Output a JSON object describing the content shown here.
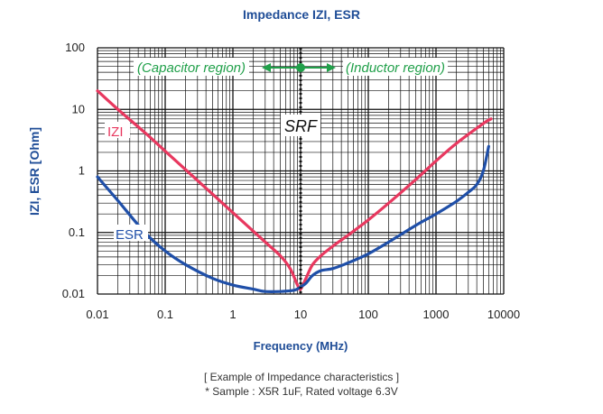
{
  "chart_data": {
    "type": "line",
    "title": "Impedance IZI, ESR",
    "xlabel": "Frequency (MHz)",
    "ylabel": "IZI, ESR [Ohm]",
    "x_scale": "log",
    "y_scale": "log",
    "xlim": [
      0.01,
      10000
    ],
    "ylim": [
      0.01,
      100
    ],
    "x_ticks": [
      "0.01",
      "0.1",
      "1",
      "10",
      "100",
      "1000",
      "10000"
    ],
    "y_ticks": [
      "0.01",
      "0.1",
      "1",
      "10",
      "100"
    ],
    "grid": true,
    "series": [
      {
        "name": "IZI",
        "color": "#e8385f",
        "x": [
          0.01,
          0.02,
          0.05,
          0.1,
          0.2,
          0.5,
          1,
          2,
          3,
          5,
          7,
          9,
          10,
          12,
          15,
          20,
          30,
          50,
          100,
          200,
          500,
          1000,
          2000,
          5000,
          6500
        ],
        "y": [
          20,
          10,
          4.2,
          2.1,
          1.05,
          0.42,
          0.21,
          0.105,
          0.07,
          0.042,
          0.026,
          0.014,
          0.012,
          0.018,
          0.03,
          0.042,
          0.06,
          0.09,
          0.16,
          0.3,
          0.72,
          1.45,
          2.8,
          5.9,
          7
        ]
      },
      {
        "name": "ESR",
        "color": "#1f4fa8",
        "x": [
          0.01,
          0.02,
          0.05,
          0.1,
          0.2,
          0.5,
          1,
          2,
          3,
          5,
          8,
          10,
          12,
          15,
          20,
          30,
          50,
          100,
          200,
          500,
          1000,
          2000,
          3000,
          4000,
          5000,
          6000
        ],
        "y": [
          0.8,
          0.33,
          0.1,
          0.05,
          0.03,
          0.018,
          0.014,
          0.012,
          0.011,
          0.011,
          0.0115,
          0.013,
          0.015,
          0.02,
          0.024,
          0.026,
          0.032,
          0.045,
          0.07,
          0.13,
          0.2,
          0.32,
          0.45,
          0.6,
          1.0,
          2.5
        ]
      }
    ],
    "annotations": {
      "srf_label": "SRF",
      "srf_x": 10,
      "capacitor_region": "(Capacitor region)",
      "inductor_region": "(Inductor region)",
      "izi_label": "IZI",
      "esr_label": "ESR"
    }
  },
  "caption": {
    "line1": "[ Example of Impedance characteristics ]",
    "line2": "* Sample : X5R 1uF, Rated voltage 6.3V"
  }
}
